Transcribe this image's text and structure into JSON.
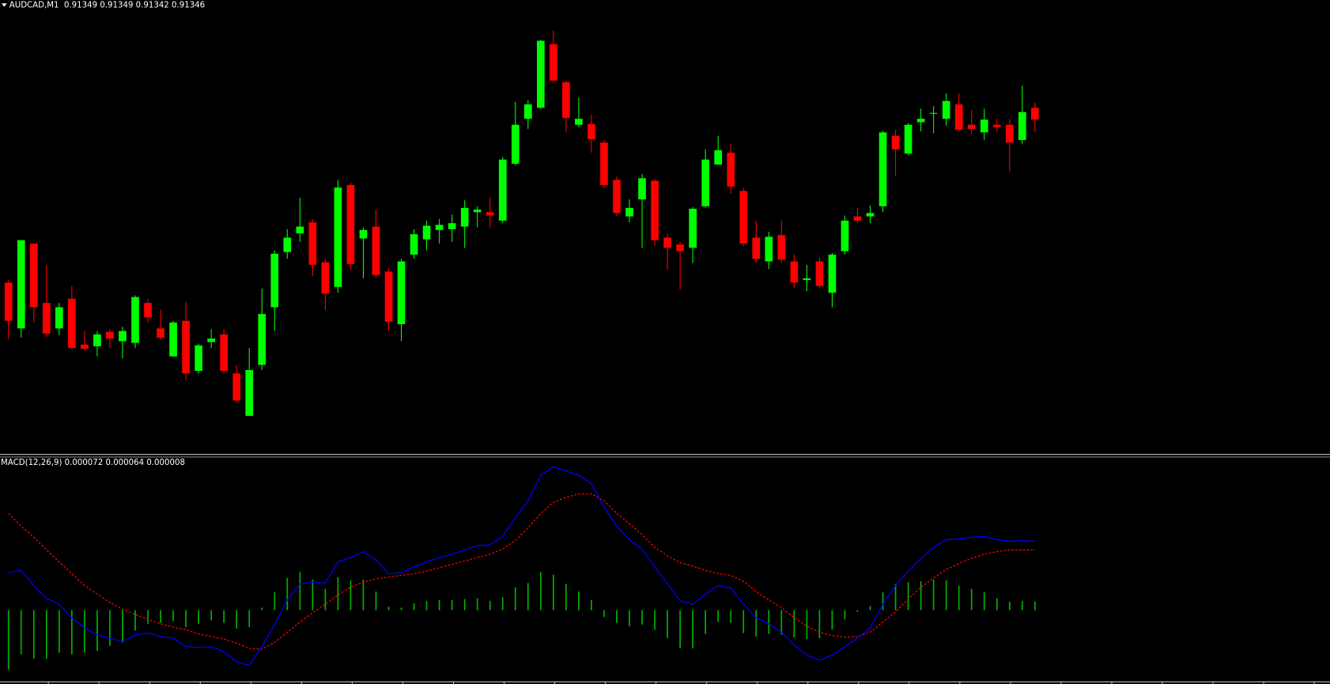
{
  "chart_data": [
    {
      "type": "candlestick",
      "title": "AUDCAD,M1  0.91349 0.91349 0.91342 0.91346",
      "up_color": "#00ff00",
      "down_color": "#ff0000",
      "ylim": [
        0.913069,
        0.913589
      ],
      "candles": [
        [
          0.913268,
          0.913271,
          0.913201,
          0.913223
        ],
        [
          0.913214,
          0.913318,
          0.913203,
          0.913318
        ],
        [
          0.913314,
          0.913314,
          0.913221,
          0.913239
        ],
        [
          0.913244,
          0.913289,
          0.913204,
          0.913208
        ],
        [
          0.913214,
          0.913244,
          0.913206,
          0.913239
        ],
        [
          0.913249,
          0.913264,
          0.913189,
          0.913191
        ],
        [
          0.913195,
          0.913211,
          0.913188,
          0.91319
        ],
        [
          0.913193,
          0.913211,
          0.913181,
          0.913207
        ],
        [
          0.91321,
          0.913213,
          0.913191,
          0.913202
        ],
        [
          0.913199,
          0.913216,
          0.913179,
          0.913211
        ],
        [
          0.913197,
          0.913253,
          0.913191,
          0.913251
        ],
        [
          0.913244,
          0.913249,
          0.913221,
          0.913227
        ],
        [
          0.913214,
          0.913236,
          0.913201,
          0.913203
        ],
        [
          0.913181,
          0.913223,
          0.913181,
          0.913221
        ],
        [
          0.913223,
          0.913245,
          0.913153,
          0.913161
        ],
        [
          0.913164,
          0.913196,
          0.913161,
          0.913194
        ],
        [
          0.913198,
          0.913213,
          0.913191,
          0.913202
        ],
        [
          0.913207,
          0.913213,
          0.913161,
          0.913164
        ],
        [
          0.913161,
          0.913171,
          0.913126,
          0.913129
        ],
        [
          0.913111,
          0.913191,
          0.913111,
          0.913165
        ],
        [
          0.913171,
          0.913261,
          0.913165,
          0.913231
        ],
        [
          0.913239,
          0.913306,
          0.913211,
          0.913302
        ],
        [
          0.913304,
          0.913331,
          0.913296,
          0.913321
        ],
        [
          0.913326,
          0.913368,
          0.913316,
          0.913334
        ],
        [
          0.913339,
          0.913343,
          0.913276,
          0.913289
        ],
        [
          0.913292,
          0.913296,
          0.913236,
          0.913255
        ],
        [
          0.913263,
          0.913389,
          0.913256,
          0.91338
        ],
        [
          0.913383,
          0.913386,
          0.913283,
          0.91329
        ],
        [
          0.91332,
          0.913333,
          0.913273,
          0.91333
        ],
        [
          0.913334,
          0.913354,
          0.913274,
          0.913277
        ],
        [
          0.913281,
          0.913285,
          0.913211,
          0.913222
        ],
        [
          0.913219,
          0.913296,
          0.913199,
          0.913293
        ],
        [
          0.913301,
          0.913331,
          0.913296,
          0.913325
        ],
        [
          0.913319,
          0.913341,
          0.913306,
          0.913335
        ],
        [
          0.91333,
          0.913343,
          0.913314,
          0.913336
        ],
        [
          0.913331,
          0.913348,
          0.913316,
          0.913338
        ],
        [
          0.913334,
          0.913365,
          0.913309,
          0.913356
        ],
        [
          0.913351,
          0.913358,
          0.913333,
          0.913354
        ],
        [
          0.913351,
          0.913368,
          0.913333,
          0.913347
        ],
        [
          0.913341,
          0.913416,
          0.913338,
          0.913413
        ],
        [
          0.913408,
          0.913481,
          0.913406,
          0.913454
        ],
        [
          0.913461,
          0.913483,
          0.913449,
          0.913478
        ],
        [
          0.913474,
          0.913554,
          0.913473,
          0.913553
        ],
        [
          0.913549,
          0.913565,
          0.913503,
          0.913506
        ],
        [
          0.913504,
          0.913506,
          0.913445,
          0.913462
        ],
        [
          0.913454,
          0.913486,
          0.913451,
          0.913461
        ],
        [
          0.913455,
          0.913466,
          0.913421,
          0.913437
        ],
        [
          0.913433,
          0.913436,
          0.913379,
          0.913383
        ],
        [
          0.913389,
          0.913393,
          0.913346,
          0.91335
        ],
        [
          0.913346,
          0.913366,
          0.913339,
          0.913356
        ],
        [
          0.913366,
          0.913396,
          0.913309,
          0.913391
        ],
        [
          0.913388,
          0.91339,
          0.913311,
          0.913318
        ],
        [
          0.913321,
          0.913326,
          0.913283,
          0.913309
        ],
        [
          0.913313,
          0.913316,
          0.91326,
          0.913305
        ],
        [
          0.913309,
          0.913357,
          0.913291,
          0.913355
        ],
        [
          0.913358,
          0.913425,
          0.913356,
          0.913413
        ],
        [
          0.913407,
          0.913441,
          0.913407,
          0.913424
        ],
        [
          0.913421,
          0.913431,
          0.913373,
          0.913381
        ],
        [
          0.913376,
          0.913379,
          0.913311,
          0.913314
        ],
        [
          0.913321,
          0.913341,
          0.913291,
          0.913296
        ],
        [
          0.913293,
          0.913328,
          0.913284,
          0.913322
        ],
        [
          0.913324,
          0.913341,
          0.913291,
          0.913295
        ],
        [
          0.913293,
          0.913301,
          0.913262,
          0.913268
        ],
        [
          0.913271,
          0.913289,
          0.913258,
          0.913273
        ],
        [
          0.913293,
          0.913298,
          0.913261,
          0.913264
        ],
        [
          0.913256,
          0.913303,
          0.913239,
          0.913301
        ],
        [
          0.913305,
          0.913347,
          0.913301,
          0.913341
        ],
        [
          0.913346,
          0.913356,
          0.913338,
          0.913341
        ],
        [
          0.913346,
          0.913359,
          0.913338,
          0.91335
        ],
        [
          0.913358,
          0.913447,
          0.913351,
          0.913445
        ],
        [
          0.913441,
          0.913448,
          0.913394,
          0.913425
        ],
        [
          0.91342,
          0.913456,
          0.913418,
          0.913454
        ],
        [
          0.913457,
          0.913473,
          0.913446,
          0.913461
        ],
        [
          0.913467,
          0.913476,
          0.913444,
          0.913468
        ],
        [
          0.913461,
          0.913491,
          0.913453,
          0.913482
        ],
        [
          0.913478,
          0.913491,
          0.913446,
          0.913448
        ],
        [
          0.913454,
          0.913471,
          0.913443,
          0.913449
        ],
        [
          0.913445,
          0.913473,
          0.913436,
          0.91346
        ],
        [
          0.913454,
          0.913461,
          0.913446,
          0.913451
        ],
        [
          0.913454,
          0.913461,
          0.913399,
          0.913433
        ],
        [
          0.913436,
          0.9135,
          0.913431,
          0.913469
        ],
        [
          0.913474,
          0.91348,
          0.913446,
          0.91346
        ]
      ]
    },
    {
      "type": "macd",
      "title": "MACD(12,26,9) 0.000072 0.000064 0.000008",
      "ylim": [
        -8.6e-05,
        0.000171
      ],
      "macd": {
        "color": "#0000ff",
        "values": [
          4.4e-05,
          4.7e-05,
          2.9e-05,
          1.4e-05,
          7e-06,
          -9e-06,
          -2.1e-05,
          -2.9e-05,
          -3.3e-05,
          -3.7e-05,
          -2.9e-05,
          -2.7e-05,
          -3.1e-05,
          -3.3e-05,
          -4.3e-05,
          -4.4e-05,
          -4.3e-05,
          -4.9e-05,
          -6.1e-05,
          -6.5e-05,
          -4.3e-05,
          -1.7e-05,
          1.2e-05,
          3.1e-05,
          3.3e-05,
          3.2e-05,
          5.7e-05,
          6.2e-05,
          6.9e-05,
          5.9e-05,
          4.3e-05,
          4.4e-05,
          5.1e-05,
          5.7e-05,
          6.2e-05,
          6.6e-05,
          7.1e-05,
          7.6e-05,
          7.7e-05,
          8.7e-05,
          0.000109,
          0.000129,
          0.000159,
          0.000169,
          0.000164,
          0.000159,
          0.000149,
          0.000121,
          9.9e-05,
          8.3e-05,
          7.2e-05,
          5.1e-05,
          3.1e-05,
          1.1e-05,
          7e-06,
          1.9e-05,
          2.9e-05,
          2.6e-05,
          7e-06,
          -9e-06,
          -1.6e-05,
          -2.6e-05,
          -4.1e-05,
          -5.3e-05,
          -5.9e-05,
          -5.3e-05,
          -4.3e-05,
          -3.3e-05,
          -2.1e-05,
          7e-06,
          2.9e-05,
          4.6e-05,
          6.1e-05,
          7.4e-05,
          8.3e-05,
          8.4e-05,
          8.6e-05,
          8.7e-05,
          8.3e-05,
          8.1e-05,
          8.2e-05,
          8.1e-05
        ]
      },
      "signal": {
        "color": "#ff0000",
        "dashed": true,
        "values": [
          0.000114,
          9.9e-05,
          8.6e-05,
          7.1e-05,
          5.7e-05,
          4.3e-05,
          2.9e-05,
          1.9e-05,
          9e-06,
          1e-06,
          -5e-06,
          -1.1e-05,
          -1.6e-05,
          -2e-05,
          -2.3e-05,
          -2.8e-05,
          -3.1e-05,
          -3.4e-05,
          -3.9e-05,
          -4.5e-05,
          -4.6e-05,
          -3.8e-05,
          -2.6e-05,
          -1.4e-05,
          -3e-06,
          7e-06,
          1.8e-05,
          2.7e-05,
          3.3e-05,
          3.7e-05,
          3.9e-05,
          4.1e-05,
          4.3e-05,
          4.6e-05,
          5e-05,
          5.4e-05,
          5.8e-05,
          6.2e-05,
          6.6e-05,
          7.2e-05,
          8.2e-05,
          9.7e-05,
          0.000114,
          0.000127,
          0.000133,
          0.000137,
          0.000137,
          0.000129,
          0.000114,
          0.000102,
          8.9e-05,
          7.4e-05,
          6.4e-05,
          5.6e-05,
          5.2e-05,
          4.7e-05,
          4.3e-05,
          4.1e-05,
          3.4e-05,
          2.2e-05,
          1.2e-05,
          3e-06,
          -9e-06,
          -1.9e-05,
          -2.6e-05,
          -3e-05,
          -3.2e-05,
          -3.1e-05,
          -2.6e-05,
          -1.4e-05,
          -2e-06,
          1.3e-05,
          2.7e-05,
          3.8e-05,
          4.8e-05,
          5.5e-05,
          6.1e-05,
          6.6e-05,
          6.9e-05,
          7.1e-05,
          7.1e-05,
          7.1e-05
        ]
      },
      "histogram": {
        "color": "#00b000",
        "values": [
          -7e-05,
          -5.2e-05,
          -5.7e-05,
          -5.7e-05,
          -5e-05,
          -5.2e-05,
          -5e-05,
          -4.8e-05,
          -4.2e-05,
          -3.8e-05,
          -2.4e-05,
          -1.6e-05,
          -1.5e-05,
          -1.3e-05,
          -2e-05,
          -1.6e-05,
          -1.2e-05,
          -1.5e-05,
          -2.2e-05,
          -2e-05,
          3e-06,
          2.1e-05,
          3.8e-05,
          4.5e-05,
          3.6e-05,
          2.5e-05,
          3.9e-05,
          3.5e-05,
          3.6e-05,
          2.2e-05,
          4e-06,
          3e-06,
          8e-06,
          1.1e-05,
          1.2e-05,
          1.2e-05,
          1.3e-05,
          1.4e-05,
          1.1e-05,
          1.5e-05,
          2.7e-05,
          3.2e-05,
          4.5e-05,
          4.2e-05,
          3.1e-05,
          2.2e-05,
          1.2e-05,
          -8e-06,
          -1.5e-05,
          -1.9e-05,
          -1.7e-05,
          -2.3e-05,
          -3.3e-05,
          -4.5e-05,
          -4.5e-05,
          -2.8e-05,
          -1.4e-05,
          -1.5e-05,
          -2.7e-05,
          -3.1e-05,
          -2.8e-05,
          -2.9e-05,
          -3.2e-05,
          -3.4e-05,
          -3.3e-05,
          -2.3e-05,
          -1.1e-05,
          -2e-06,
          5e-06,
          2.1e-05,
          3.1e-05,
          3.3e-05,
          3.4e-05,
          3.6e-05,
          3.5e-05,
          2.9e-05,
          2.5e-05,
          2.1e-05,
          1.4e-05,
          1e-05,
          1.1e-05,
          1e-05
        ]
      }
    }
  ]
}
